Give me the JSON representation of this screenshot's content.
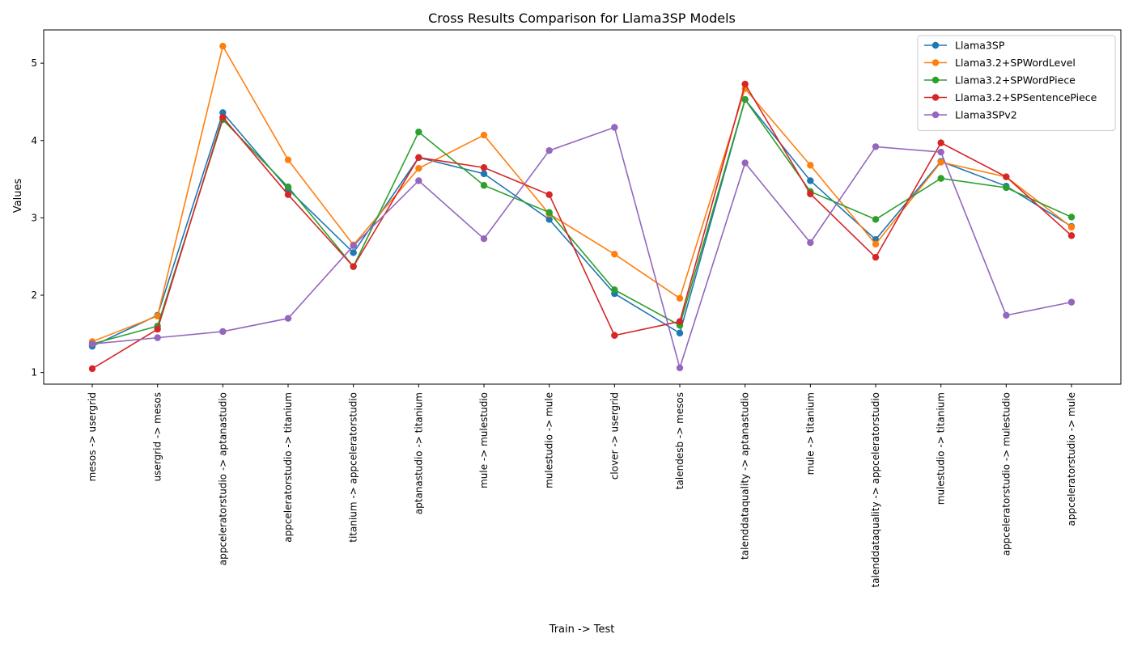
{
  "chart_data": {
    "type": "line",
    "title": "Cross Results Comparison for Llama3SP Models",
    "xlabel": "Train -> Test",
    "ylabel": "Values",
    "ylim": [
      0.85,
      5.43
    ],
    "yticks": [
      1,
      2,
      3,
      4,
      5
    ],
    "grid": false,
    "legend_position": "top-right",
    "categories": [
      "mesos -> usergrid",
      "usergrid -> mesos",
      "appceleratorstudio -> aptanastudio",
      "appceleratorstudio -> titanium",
      "titanium -> appceleratorstudio",
      "aptanastudio -> titanium",
      "mule -> mulestudio",
      "mulestudio -> mule",
      "clover -> usergrid",
      "talendesb -> mesos",
      "talenddataquality -> aptanastudio",
      "mule -> titanium",
      "talenddataquality -> appceleratorstudio",
      "mulestudio -> titanium",
      "appceleratorstudio -> mulestudio",
      "appceleratorstudio -> mule"
    ],
    "series": [
      {
        "name": "Llama3SP",
        "color": "#1f77b4",
        "values": [
          1.34,
          1.74,
          4.36,
          3.37,
          2.55,
          3.78,
          3.57,
          2.98,
          2.02,
          1.51,
          4.53,
          3.48,
          2.72,
          3.73,
          3.41,
          2.89
        ]
      },
      {
        "name": "Llama3.2+SPWordLevel",
        "color": "#ff7f0e",
        "values": [
          1.4,
          1.73,
          5.22,
          3.75,
          2.65,
          3.64,
          4.07,
          3.05,
          2.53,
          1.96,
          4.67,
          3.68,
          2.66,
          3.72,
          3.53,
          2.88
        ]
      },
      {
        "name": "Llama3.2+SPWordPiece",
        "color": "#2ca02c",
        "values": [
          1.37,
          1.6,
          4.27,
          3.4,
          2.37,
          4.11,
          3.42,
          3.07,
          2.07,
          1.61,
          4.53,
          3.34,
          2.98,
          3.51,
          3.39,
          3.01
        ]
      },
      {
        "name": "Llama3.2+SPSentencePiece",
        "color": "#d62728",
        "values": [
          1.05,
          1.56,
          4.3,
          3.3,
          2.37,
          3.78,
          3.65,
          3.3,
          1.48,
          1.66,
          4.73,
          3.31,
          2.49,
          3.97,
          3.53,
          2.77
        ]
      },
      {
        "name": "Llama3SPv2",
        "color": "#9467bd",
        "values": [
          1.37,
          1.45,
          1.53,
          1.7,
          2.64,
          3.48,
          2.73,
          3.87,
          4.17,
          1.06,
          3.71,
          2.68,
          3.92,
          3.85,
          1.74,
          1.91
        ]
      }
    ]
  }
}
